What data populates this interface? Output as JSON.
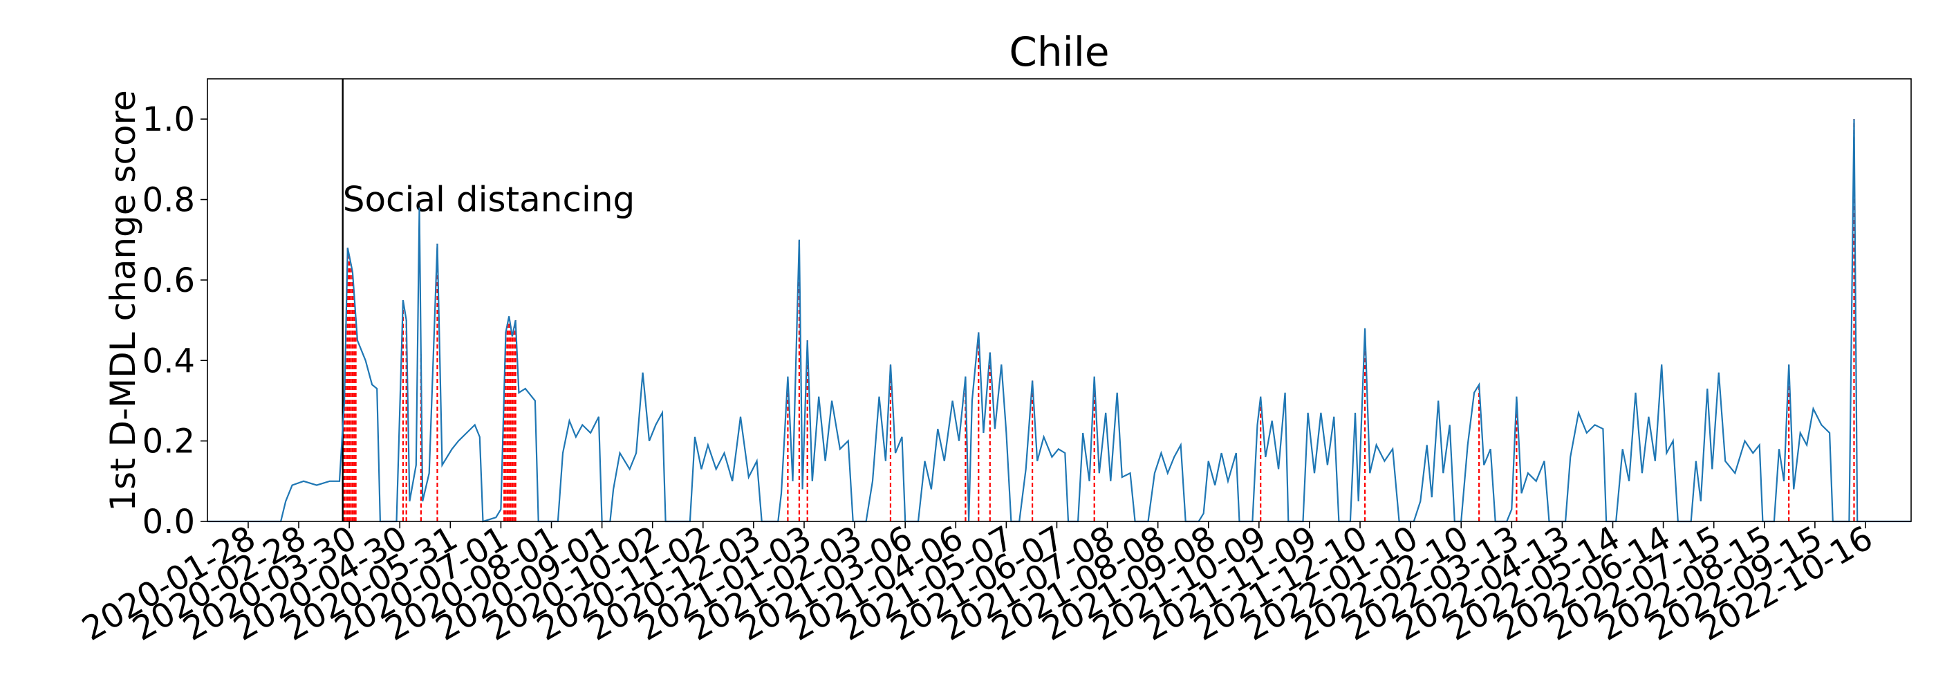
{
  "chart_data": {
    "type": "line",
    "title": "Chile",
    "xlabel": "",
    "ylabel": "1st D-MDL change score",
    "ylim": [
      0.0,
      1.1
    ],
    "xlim": [
      "2020-01-03",
      "2022-11-13"
    ],
    "grid": false,
    "legend": "none",
    "y_ticks": [
      "0.0",
      "0.2",
      "0.4",
      "0.6",
      "0.8",
      "1.0"
    ],
    "x_ticks": [
      "2020-01-28",
      "2020-02-28",
      "2020-03-30",
      "2020-04-30",
      "2020-05-31",
      "2020-07-01",
      "2020-08-01",
      "2020-09-01",
      "2020-10-02",
      "2020-11-02",
      "2020-12-03",
      "2021-01-03",
      "2021-02-03",
      "2021-03-06",
      "2021-04-06",
      "2021-05-07",
      "2021-06-07",
      "2021-07-08",
      "2021-08-08",
      "2021-09-08",
      "2021-10-09",
      "2021-11-09",
      "2021-12-10",
      "2022-01-10",
      "2022-02-10",
      "2022-03-13",
      "2022-04-13",
      "2022-05-14",
      "2022-06-14",
      "2022-07-15",
      "2022-08-15",
      "2022-09-15",
      "2022-10-16"
    ],
    "annotations": [
      {
        "date": "2020-03-26",
        "label": "Social distancing",
        "color": "#000000",
        "y": 0.8
      }
    ],
    "series": [
      {
        "color": "#1f77b4",
        "points": [
          [
            "2020-01-03",
            0.0
          ],
          [
            "2020-02-17",
            0.0
          ],
          [
            "2020-02-20",
            0.05
          ],
          [
            "2020-02-24",
            0.09
          ],
          [
            "2020-03-02",
            0.1
          ],
          [
            "2020-03-10",
            0.09
          ],
          [
            "2020-03-18",
            0.1
          ],
          [
            "2020-03-24",
            0.1
          ],
          [
            "2020-03-27",
            0.3
          ],
          [
            "2020-03-29",
            0.68
          ],
          [
            "2020-04-01",
            0.62
          ],
          [
            "2020-04-04",
            0.45
          ],
          [
            "2020-04-09",
            0.4
          ],
          [
            "2020-04-13",
            0.34
          ],
          [
            "2020-04-16",
            0.33
          ],
          [
            "2020-04-18",
            0.0
          ],
          [
            "2020-04-28",
            0.0
          ],
          [
            "2020-05-02",
            0.55
          ],
          [
            "2020-05-04",
            0.5
          ],
          [
            "2020-05-06",
            0.05
          ],
          [
            "2020-05-10",
            0.14
          ],
          [
            "2020-05-12",
            0.78
          ],
          [
            "2020-05-14",
            0.05
          ],
          [
            "2020-05-18",
            0.12
          ],
          [
            "2020-05-23",
            0.69
          ],
          [
            "2020-05-26",
            0.14
          ],
          [
            "2020-06-01",
            0.18
          ],
          [
            "2020-06-05",
            0.2
          ],
          [
            "2020-06-10",
            0.22
          ],
          [
            "2020-06-15",
            0.24
          ],
          [
            "2020-06-18",
            0.21
          ],
          [
            "2020-06-20",
            0.0
          ],
          [
            "2020-06-28",
            0.01
          ],
          [
            "2020-07-01",
            0.03
          ],
          [
            "2020-07-04",
            0.47
          ],
          [
            "2020-07-06",
            0.51
          ],
          [
            "2020-07-08",
            0.46
          ],
          [
            "2020-07-10",
            0.5
          ],
          [
            "2020-07-12",
            0.32
          ],
          [
            "2020-07-16",
            0.33
          ],
          [
            "2020-07-22",
            0.3
          ],
          [
            "2020-07-24",
            0.0
          ],
          [
            "2020-08-05",
            0.0
          ],
          [
            "2020-08-08",
            0.17
          ],
          [
            "2020-08-12",
            0.25
          ],
          [
            "2020-08-16",
            0.21
          ],
          [
            "2020-08-20",
            0.24
          ],
          [
            "2020-08-25",
            0.22
          ],
          [
            "2020-08-30",
            0.26
          ],
          [
            "2020-09-01",
            0.0
          ],
          [
            "2020-09-06",
            0.0
          ],
          [
            "2020-09-08",
            0.08
          ],
          [
            "2020-09-12",
            0.17
          ],
          [
            "2020-09-18",
            0.13
          ],
          [
            "2020-09-22",
            0.17
          ],
          [
            "2020-09-26",
            0.37
          ],
          [
            "2020-09-30",
            0.2
          ],
          [
            "2020-10-04",
            0.24
          ],
          [
            "2020-10-08",
            0.27
          ],
          [
            "2020-10-10",
            0.0
          ],
          [
            "2020-10-25",
            0.0
          ],
          [
            "2020-10-28",
            0.21
          ],
          [
            "2020-11-01",
            0.13
          ],
          [
            "2020-11-05",
            0.19
          ],
          [
            "2020-11-10",
            0.13
          ],
          [
            "2020-11-15",
            0.17
          ],
          [
            "2020-11-20",
            0.1
          ],
          [
            "2020-11-25",
            0.26
          ],
          [
            "2020-11-30",
            0.11
          ],
          [
            "2020-12-05",
            0.15
          ],
          [
            "2020-12-08",
            0.0
          ],
          [
            "2020-12-18",
            0.0
          ],
          [
            "2020-12-20",
            0.07
          ],
          [
            "2020-12-24",
            0.36
          ],
          [
            "2020-12-27",
            0.1
          ],
          [
            "2020-12-31",
            0.7
          ],
          [
            "2021-01-02",
            0.08
          ],
          [
            "2021-01-05",
            0.45
          ],
          [
            "2021-01-08",
            0.1
          ],
          [
            "2021-01-12",
            0.31
          ],
          [
            "2021-01-16",
            0.15
          ],
          [
            "2021-01-20",
            0.3
          ],
          [
            "2021-01-25",
            0.18
          ],
          [
            "2021-01-30",
            0.2
          ],
          [
            "2021-02-02",
            0.0
          ],
          [
            "2021-02-10",
            0.0
          ],
          [
            "2021-02-14",
            0.1
          ],
          [
            "2021-02-18",
            0.31
          ],
          [
            "2021-02-22",
            0.15
          ],
          [
            "2021-02-25",
            0.39
          ],
          [
            "2021-02-28",
            0.17
          ],
          [
            "2021-03-04",
            0.21
          ],
          [
            "2021-03-06",
            0.0
          ],
          [
            "2021-03-14",
            0.0
          ],
          [
            "2021-03-18",
            0.15
          ],
          [
            "2021-03-22",
            0.08
          ],
          [
            "2021-03-26",
            0.23
          ],
          [
            "2021-03-30",
            0.15
          ],
          [
            "2021-04-04",
            0.3
          ],
          [
            "2021-04-08",
            0.2
          ],
          [
            "2021-04-12",
            0.36
          ],
          [
            "2021-04-14",
            0.0
          ],
          [
            "2021-04-16",
            0.3
          ],
          [
            "2021-04-20",
            0.47
          ],
          [
            "2021-04-23",
            0.22
          ],
          [
            "2021-04-27",
            0.42
          ],
          [
            "2021-04-30",
            0.23
          ],
          [
            "2021-05-04",
            0.39
          ],
          [
            "2021-05-07",
            0.22
          ],
          [
            "2021-05-10",
            0.0
          ],
          [
            "2021-05-15",
            0.0
          ],
          [
            "2021-05-19",
            0.13
          ],
          [
            "2021-05-23",
            0.35
          ],
          [
            "2021-05-26",
            0.15
          ],
          [
            "2021-05-30",
            0.21
          ],
          [
            "2021-06-04",
            0.16
          ],
          [
            "2021-06-08",
            0.18
          ],
          [
            "2021-06-12",
            0.17
          ],
          [
            "2021-06-14",
            0.0
          ],
          [
            "2021-06-20",
            0.0
          ],
          [
            "2021-06-23",
            0.22
          ],
          [
            "2021-06-27",
            0.1
          ],
          [
            "2021-06-30",
            0.36
          ],
          [
            "2021-07-03",
            0.12
          ],
          [
            "2021-07-07",
            0.27
          ],
          [
            "2021-07-10",
            0.1
          ],
          [
            "2021-07-14",
            0.32
          ],
          [
            "2021-07-17",
            0.11
          ],
          [
            "2021-07-22",
            0.12
          ],
          [
            "2021-07-25",
            0.0
          ],
          [
            "2021-08-02",
            0.0
          ],
          [
            "2021-08-06",
            0.12
          ],
          [
            "2021-08-10",
            0.17
          ],
          [
            "2021-08-14",
            0.12
          ],
          [
            "2021-08-18",
            0.16
          ],
          [
            "2021-08-22",
            0.19
          ],
          [
            "2021-08-25",
            0.0
          ],
          [
            "2021-09-02",
            0.0
          ],
          [
            "2021-09-05",
            0.02
          ],
          [
            "2021-09-08",
            0.15
          ],
          [
            "2021-09-12",
            0.09
          ],
          [
            "2021-09-16",
            0.17
          ],
          [
            "2021-09-20",
            0.1
          ],
          [
            "2021-09-25",
            0.17
          ],
          [
            "2021-09-27",
            0.0
          ],
          [
            "2021-10-05",
            0.0
          ],
          [
            "2021-10-08",
            0.24
          ],
          [
            "2021-10-10",
            0.31
          ],
          [
            "2021-10-13",
            0.16
          ],
          [
            "2021-10-17",
            0.25
          ],
          [
            "2021-10-21",
            0.13
          ],
          [
            "2021-10-25",
            0.32
          ],
          [
            "2021-10-27",
            0.0
          ],
          [
            "2021-11-05",
            0.0
          ],
          [
            "2021-11-08",
            0.27
          ],
          [
            "2021-11-12",
            0.12
          ],
          [
            "2021-11-16",
            0.27
          ],
          [
            "2021-11-20",
            0.14
          ],
          [
            "2021-11-24",
            0.26
          ],
          [
            "2021-11-27",
            0.0
          ],
          [
            "2021-12-04",
            0.0
          ],
          [
            "2021-12-07",
            0.27
          ],
          [
            "2021-12-09",
            0.05
          ],
          [
            "2021-12-13",
            0.48
          ],
          [
            "2021-12-16",
            0.12
          ],
          [
            "2021-12-20",
            0.19
          ],
          [
            "2021-12-25",
            0.15
          ],
          [
            "2021-12-30",
            0.18
          ],
          [
            "2022-01-03",
            0.0
          ],
          [
            "2022-01-12",
            0.0
          ],
          [
            "2022-01-16",
            0.05
          ],
          [
            "2022-01-20",
            0.19
          ],
          [
            "2022-01-23",
            0.06
          ],
          [
            "2022-01-27",
            0.3
          ],
          [
            "2022-01-30",
            0.12
          ],
          [
            "2022-02-03",
            0.24
          ],
          [
            "2022-02-06",
            0.0
          ],
          [
            "2022-02-10",
            0.0
          ],
          [
            "2022-02-14",
            0.19
          ],
          [
            "2022-02-18",
            0.32
          ],
          [
            "2022-02-21",
            0.34
          ],
          [
            "2022-02-24",
            0.14
          ],
          [
            "2022-02-28",
            0.18
          ],
          [
            "2022-03-03",
            0.0
          ],
          [
            "2022-03-10",
            0.0
          ],
          [
            "2022-03-13",
            0.03
          ],
          [
            "2022-03-16",
            0.31
          ],
          [
            "2022-03-19",
            0.07
          ],
          [
            "2022-03-23",
            0.12
          ],
          [
            "2022-03-28",
            0.1
          ],
          [
            "2022-04-02",
            0.15
          ],
          [
            "2022-04-05",
            0.0
          ],
          [
            "2022-04-15",
            0.0
          ],
          [
            "2022-04-18",
            0.16
          ],
          [
            "2022-04-23",
            0.27
          ],
          [
            "2022-04-28",
            0.22
          ],
          [
            "2022-05-03",
            0.24
          ],
          [
            "2022-05-08",
            0.23
          ],
          [
            "2022-05-10",
            0.0
          ],
          [
            "2022-05-16",
            0.0
          ],
          [
            "2022-05-20",
            0.18
          ],
          [
            "2022-05-24",
            0.1
          ],
          [
            "2022-05-28",
            0.32
          ],
          [
            "2022-06-01",
            0.12
          ],
          [
            "2022-06-05",
            0.26
          ],
          [
            "2022-06-09",
            0.15
          ],
          [
            "2022-06-13",
            0.39
          ],
          [
            "2022-06-16",
            0.17
          ],
          [
            "2022-06-20",
            0.2
          ],
          [
            "2022-06-23",
            0.0
          ],
          [
            "2022-07-01",
            0.0
          ],
          [
            "2022-07-04",
            0.15
          ],
          [
            "2022-07-07",
            0.05
          ],
          [
            "2022-07-11",
            0.33
          ],
          [
            "2022-07-14",
            0.13
          ],
          [
            "2022-07-18",
            0.37
          ],
          [
            "2022-07-22",
            0.15
          ],
          [
            "2022-07-28",
            0.12
          ],
          [
            "2022-08-03",
            0.2
          ],
          [
            "2022-08-08",
            0.17
          ],
          [
            "2022-08-12",
            0.19
          ],
          [
            "2022-08-14",
            0.0
          ],
          [
            "2022-08-21",
            0.0
          ],
          [
            "2022-08-24",
            0.18
          ],
          [
            "2022-08-27",
            0.1
          ],
          [
            "2022-08-30",
            0.39
          ],
          [
            "2022-09-02",
            0.08
          ],
          [
            "2022-09-06",
            0.22
          ],
          [
            "2022-09-10",
            0.19
          ],
          [
            "2022-09-14",
            0.28
          ],
          [
            "2022-09-19",
            0.24
          ],
          [
            "2022-09-24",
            0.22
          ],
          [
            "2022-09-26",
            0.0
          ],
          [
            "2022-10-06",
            0.0
          ],
          [
            "2022-10-09",
            1.0
          ],
          [
            "2022-10-11",
            0.0
          ],
          [
            "2022-11-13",
            0.0
          ]
        ]
      }
    ],
    "change_points": {
      "color": "#ff0000",
      "style": "dashed",
      "dates": [
        "2020-03-26",
        "2020-03-27",
        "2020-03-28",
        "2020-03-29",
        "2020-03-30",
        "2020-03-31",
        "2020-04-01",
        "2020-04-02",
        "2020-04-03",
        "2020-05-02",
        "2020-05-04",
        "2020-05-13",
        "2020-05-23",
        "2020-07-03",
        "2020-07-04",
        "2020-07-05",
        "2020-07-06",
        "2020-07-07",
        "2020-07-08",
        "2020-07-09",
        "2020-07-10",
        "2020-12-24",
        "2020-12-31",
        "2021-01-05",
        "2021-02-25",
        "2021-04-12",
        "2021-04-20",
        "2021-04-27",
        "2021-05-23",
        "2021-06-30",
        "2021-10-10",
        "2021-12-13",
        "2022-02-21",
        "2022-03-16",
        "2022-08-30",
        "2022-10-09"
      ]
    }
  }
}
